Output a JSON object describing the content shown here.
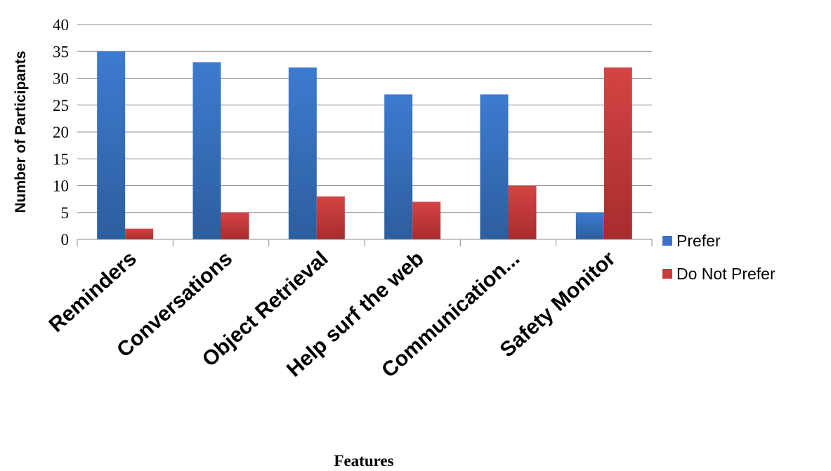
{
  "chart_data": {
    "type": "bar",
    "title": "",
    "xlabel": "Features",
    "ylabel": "Number of Participants",
    "categories": [
      "Reminders",
      "Conversations",
      "Object Retrieval",
      "Help surf the web",
      "Communication...",
      "Safety Monitor"
    ],
    "series": [
      {
        "name": "Prefer",
        "color": "#3b74c6",
        "values": [
          35,
          33,
          32,
          27,
          27,
          5
        ]
      },
      {
        "name": "Do Not Prefer",
        "color": "#cc3b3b",
        "values": [
          2,
          5,
          8,
          7,
          10,
          32
        ]
      }
    ],
    "ylim": [
      0,
      40
    ],
    "yticks": [
      0,
      5,
      10,
      15,
      20,
      25,
      30,
      35,
      40
    ],
    "grid": true,
    "legend": "right"
  }
}
